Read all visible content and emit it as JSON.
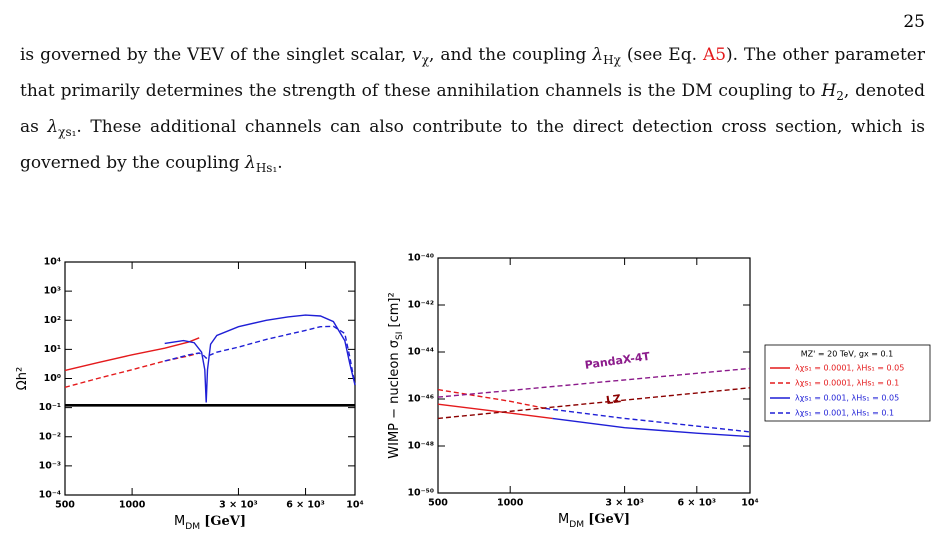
{
  "page_number": "25",
  "paragraph": [
    "is governed by the VEV of the singlet scalar, ",
    {
      "i": "v"
    },
    {
      "sub": "χ"
    },
    ", and the coupling ",
    {
      "i": "λ"
    },
    {
      "sub": "Hχ"
    },
    " (see Eq. ",
    {
      "link": "A5"
    },
    "). The other parameter that primarily determines the strength of these annihilation channels is the DM coupling to ",
    {
      "i": "H"
    },
    {
      "sub": "2"
    },
    ", denoted as ",
    {
      "i": "λ"
    },
    {
      "sub": "χs₁"
    },
    ". These additional channels can also contribute to the direct detection cross section, which is governed by the coupling ",
    {
      "i": "λ"
    },
    {
      "sub": "Hs₁"
    },
    "."
  ],
  "chart_data": [
    {
      "type": "line",
      "xlog": true,
      "ylog": true,
      "xlabel": [
        "M",
        {
          "sub": "DM"
        },
        " ",
        {
          "b": "[GeV]"
        }
      ],
      "ylabel": [
        "Ωh²"
      ],
      "xlim": [
        500,
        10000
      ],
      "ylim": [
        0.0001,
        10000
      ],
      "xticks": [
        500,
        1000,
        {
          "value": 3000,
          "label": "3 × 10³"
        },
        {
          "value": 6000,
          "label": "6 × 10³"
        },
        {
          "value": 10000,
          "label": "10⁴"
        }
      ],
      "yticks": [
        {
          "value": 0.0001,
          "label": "10⁻⁴"
        },
        {
          "value": 0.001,
          "label": "10⁻³"
        },
        {
          "value": 0.01,
          "label": "10⁻²"
        },
        {
          "value": 0.1,
          "label": "10⁻¹"
        },
        {
          "value": 1,
          "label": "10⁰"
        },
        {
          "value": 10,
          "label": "10¹"
        },
        {
          "value": 100,
          "label": "10²"
        },
        {
          "value": 1000,
          "label": "10³"
        },
        {
          "value": 10000,
          "label": "10⁴"
        }
      ],
      "series": [
        {
          "color": "#000000",
          "style": "thick",
          "x": [
            500,
            10000
          ],
          "values": [
            0.12,
            0.12
          ]
        },
        {
          "color": "#e41a1c",
          "style": "solid",
          "x": [
            500,
            700,
            1000,
            1400,
            1800,
            2000
          ],
          "values": [
            1.9,
            3.5,
            6.5,
            11,
            18,
            25
          ]
        },
        {
          "color": "#e41a1c",
          "style": "dashed",
          "x": [
            500,
            700,
            1000,
            1400,
            1800,
            2000
          ],
          "values": [
            0.5,
            1,
            2,
            4,
            6,
            7.5
          ]
        },
        {
          "color": "#1f1fd6",
          "style": "solid",
          "x": [
            1400,
            1700,
            1900,
            2050,
            2120,
            2150,
            2180,
            2250,
            2400,
            3000,
            4000,
            5000,
            6000,
            7000,
            8000,
            9000,
            9500,
            10000
          ],
          "values": [
            16,
            20,
            17,
            8,
            2,
            0.15,
            2,
            15,
            30,
            60,
            100,
            130,
            150,
            140,
            90,
            20,
            3,
            0.6
          ]
        },
        {
          "color": "#1f1fd6",
          "style": "dashed",
          "x": [
            1400,
            1800,
            2000,
            2100,
            2150,
            2200,
            2400,
            3000,
            4000,
            6000,
            7000,
            8000,
            9000,
            9500,
            10000
          ],
          "values": [
            4,
            6.5,
            7.5,
            6,
            5,
            6,
            8,
            12,
            22,
            45,
            60,
            62,
            35,
            5,
            0.6
          ]
        }
      ]
    },
    {
      "type": "line",
      "xlog": true,
      "ylog": true,
      "xlabel": [
        "M",
        {
          "sub": "DM"
        },
        " ",
        {
          "b": "[GeV]"
        }
      ],
      "ylabel": [
        "WIMP − nucleon  σ",
        {
          "sub": "SI"
        },
        " [cm]²"
      ],
      "xlim": [
        500,
        10000
      ],
      "ylim": [
        1e-50,
        1e-40
      ],
      "xticks": [
        500,
        1000,
        {
          "value": 3000,
          "label": "3 × 10³"
        },
        {
          "value": 6000,
          "label": "6 × 10³"
        },
        {
          "value": 10000,
          "label": "10⁴"
        }
      ],
      "yticks": [
        {
          "value": 1e-50,
          "label": "10⁻⁵⁰"
        },
        {
          "value": 1e-48,
          "label": "10⁻⁴⁸"
        },
        {
          "value": 1e-46,
          "label": "10⁻⁴⁶"
        },
        {
          "value": 1e-44,
          "label": "10⁻⁴⁴"
        },
        {
          "value": 1e-42,
          "label": "10⁻⁴²"
        },
        {
          "value": 1e-40,
          "label": "10⁻⁴⁰"
        }
      ],
      "legend_title": "MZ' = 20 TeV,  gx = 0.1",
      "series": [
        {
          "name": "λχs₁ = 0.0001,  λHs₁ = 0.05",
          "color": "#e41a1c",
          "style": "solid",
          "x": [
            500,
            1000,
            1500
          ],
          "values": [
            6e-47,
            2.5e-47,
            1.5e-47
          ]
        },
        {
          "name": "λχs₁ = 0.0001,  λHs₁ = 0.1",
          "color": "#e41a1c",
          "style": "dashed",
          "x": [
            500,
            1000,
            1400
          ],
          "values": [
            2.5e-46,
            8e-47,
            4e-47
          ]
        },
        {
          "name": "λχs₁ = 0.001,  λHs₁ = 0.05",
          "color": "#1f1fd6",
          "style": "solid",
          "x": [
            1500,
            3000,
            6000,
            10000
          ],
          "values": [
            1.5e-47,
            6e-48,
            3.5e-48,
            2.5e-48
          ]
        },
        {
          "name": "λχs₁ = 0.001,  λHs₁ = 0.1",
          "color": "#1f1fd6",
          "style": "dashed",
          "x": [
            1400,
            3000,
            6000,
            10000
          ],
          "values": [
            4e-47,
            1.5e-47,
            7e-48,
            4e-48
          ]
        },
        {
          "color": "#8b1a8b",
          "style": "dashed",
          "x": [
            500,
            10000
          ],
          "values": [
            1.2e-46,
            2e-45
          ]
        },
        {
          "color": "#8b0000",
          "style": "dashed",
          "x": [
            500,
            10000
          ],
          "values": [
            1.5e-47,
            3e-46
          ]
        }
      ],
      "annotations": [
        {
          "text": "PandaX-4T",
          "x": 2800,
          "y": 4e-45,
          "color": "#8b1a8b"
        },
        {
          "text": "LZ",
          "x": 2700,
          "y": 9e-47,
          "color": "#8b0000"
        }
      ]
    }
  ]
}
